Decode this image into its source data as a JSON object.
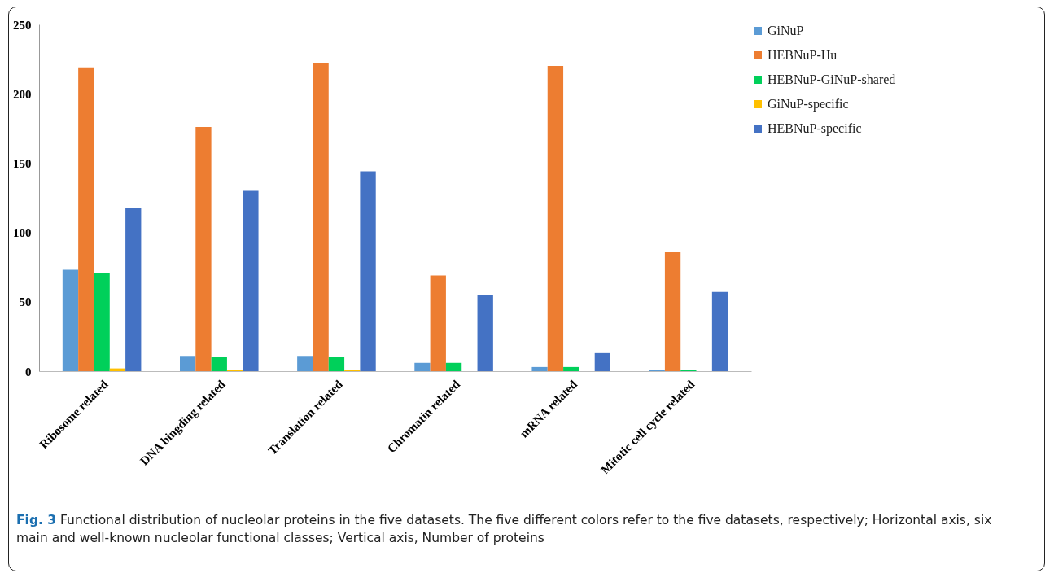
{
  "chart_data": {
    "type": "bar",
    "categories": [
      "Ribosome related",
      "DNA bingding related",
      "Translation related",
      "Chromatin related",
      "mRNA related",
      "Mitotic cell cycle related"
    ],
    "series": [
      {
        "name": "GiNuP",
        "color": "#5b9bd5",
        "values": [
          73,
          11,
          11,
          6,
          3,
          1
        ]
      },
      {
        "name": "HEBNuP-Hu",
        "color": "#ed7d31",
        "values": [
          219,
          176,
          222,
          69,
          220,
          86
        ]
      },
      {
        "name": "HEBNuP-GiNuP-shared",
        "color": "#00d05a",
        "values": [
          71,
          10,
          10,
          6,
          3,
          1
        ]
      },
      {
        "name": "GiNuP-specific",
        "color": "#ffc000",
        "values": [
          2,
          1,
          1,
          0,
          0,
          0
        ]
      },
      {
        "name": "HEBNuP-specific",
        "color": "#4472c4",
        "values": [
          118,
          130,
          144,
          55,
          13,
          57
        ]
      }
    ],
    "ylim": [
      0,
      250
    ],
    "yticks": [
      0,
      50,
      100,
      150,
      200,
      250
    ],
    "grid": false,
    "legend": "right",
    "annotations": [
      "Fig. 3",
      "Functional distribution of nucleolar proteins in the five datasets. The five different colors refer to the five datasets, respectively; Horizontal axis, six main and well-known nucleolar functional classes; Vertical axis, Number of proteins"
    ]
  }
}
